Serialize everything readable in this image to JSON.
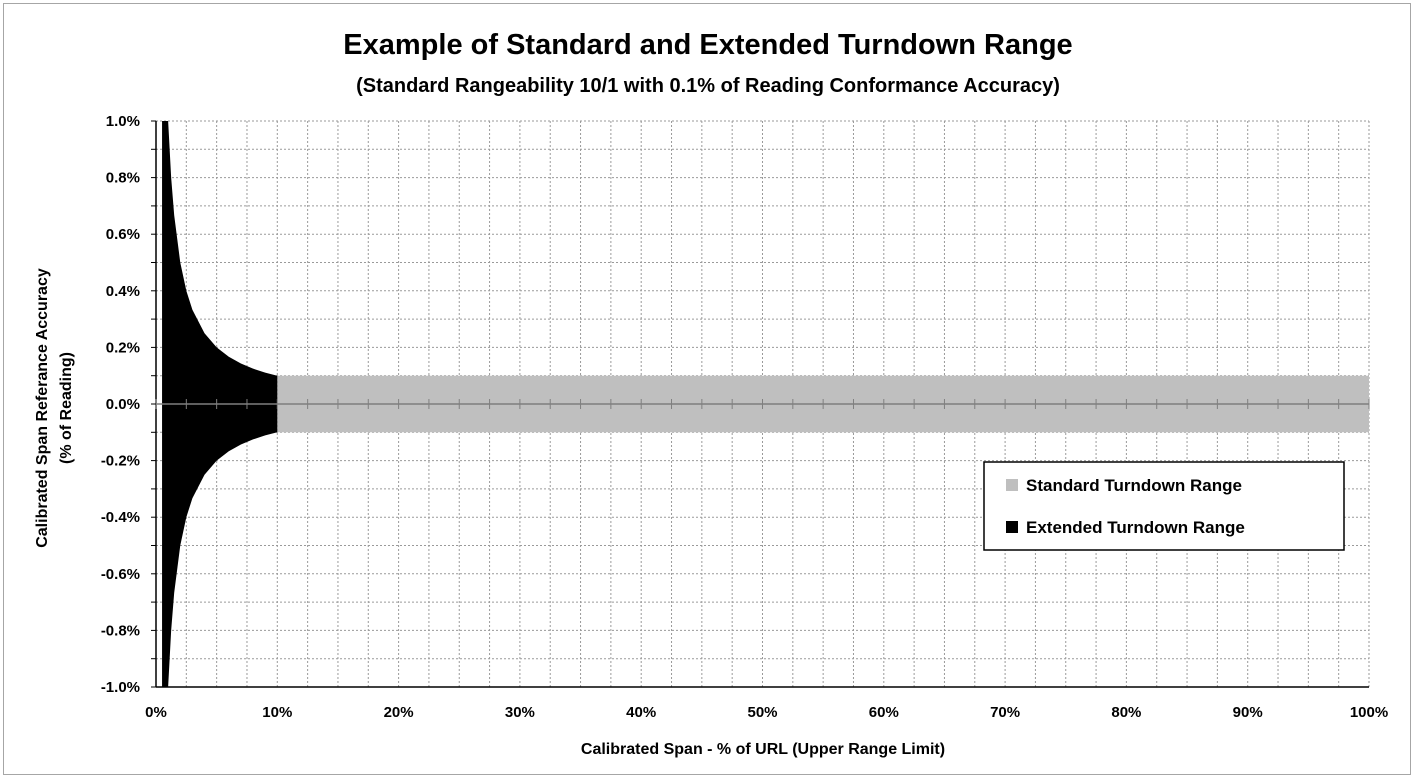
{
  "chart_data": {
    "type": "area",
    "title": "Example of Standard and Extended Turndown Range",
    "subtitle": "(Standard Rangeability 10/1 with 0.1% of Reading Conformance Accuracy)",
    "xlabel": "Calibrated Span - % of URL (Upper Range Limit)",
    "ylabel": "Calibrated Span Referance Accuracy",
    "ylabel_line2": "(% of Reading)",
    "xlim": [
      0,
      100
    ],
    "ylim": [
      -1.0,
      1.0
    ],
    "x_ticks": [
      0,
      10,
      20,
      30,
      40,
      50,
      60,
      70,
      80,
      90,
      100
    ],
    "x_tick_labels": [
      "0%",
      "10%",
      "20%",
      "30%",
      "40%",
      "50%",
      "60%",
      "70%",
      "80%",
      "90%",
      "100%"
    ],
    "y_ticks": [
      1.0,
      0.8,
      0.6,
      0.4,
      0.2,
      0.0,
      -0.2,
      -0.4,
      -0.6,
      -0.8,
      -1.0
    ],
    "y_tick_labels": [
      "1.0%",
      "0.8%",
      "0.6%",
      "0.4%",
      "0.2%",
      "0.0%",
      "-0.2%",
      "-0.4%",
      "-0.6%",
      "-0.8%",
      "-1.0%"
    ],
    "grid": true,
    "legend_position": "right",
    "series": [
      {
        "name": "Standard Turndown Range",
        "color": "#bfbfbf",
        "x": [
          10,
          100
        ],
        "upper": [
          0.1,
          0.1
        ],
        "lower": [
          -0.1,
          -0.1
        ]
      },
      {
        "name": "Extended Turndown Range",
        "color": "#000000",
        "x": [
          0.5,
          0.75,
          1,
          1.25,
          1.5,
          2,
          2.5,
          3,
          4,
          5,
          6,
          7,
          8,
          9,
          10
        ],
        "upper": [
          1.0,
          1.0,
          1.0,
          0.8,
          0.667,
          0.5,
          0.4,
          0.333,
          0.25,
          0.2,
          0.167,
          0.143,
          0.125,
          0.111,
          0.1
        ],
        "lower": [
          -1.0,
          -1.0,
          -1.0,
          -0.8,
          -0.667,
          -0.5,
          -0.4,
          -0.333,
          -0.25,
          -0.2,
          -0.167,
          -0.143,
          -0.125,
          -0.111,
          -0.1
        ]
      }
    ]
  }
}
